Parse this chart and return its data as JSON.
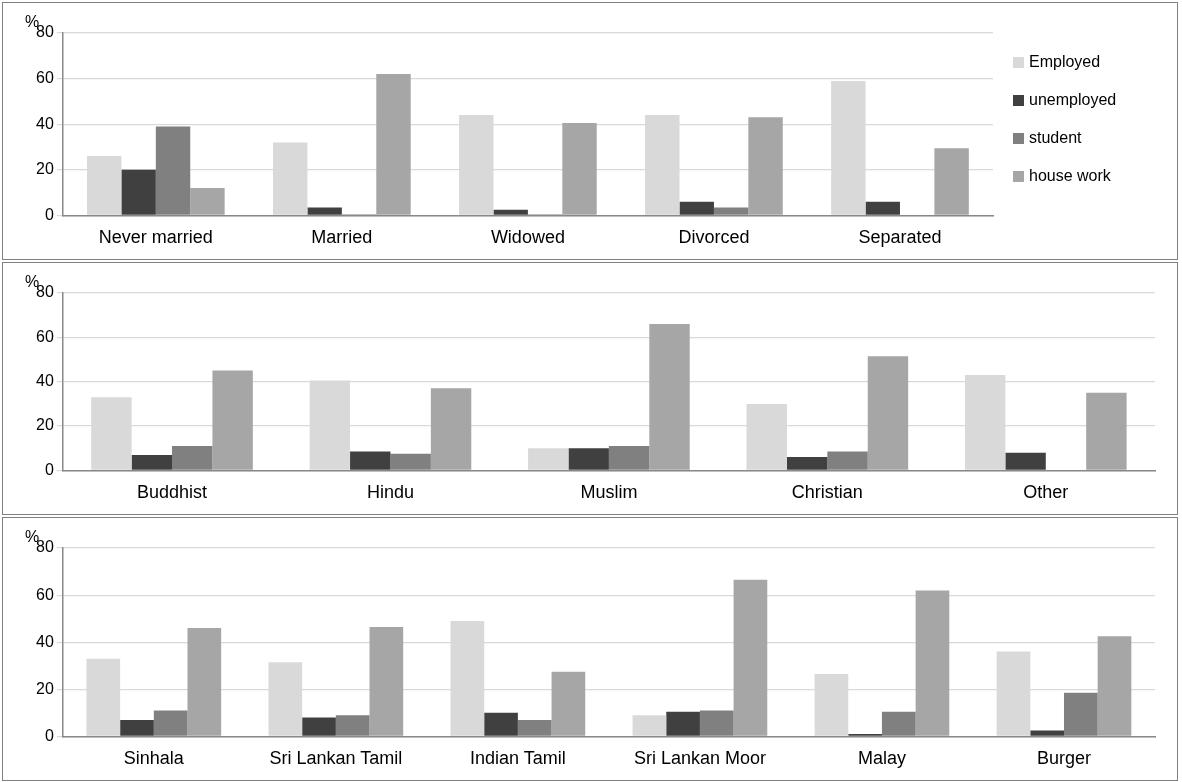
{
  "chart_data": [
    {
      "type": "bar",
      "ylabel": "%",
      "categories": [
        "Never married",
        "Married",
        "Widowed",
        "Divorced",
        "Separated"
      ],
      "ylim": [
        0,
        80
      ],
      "yticks": [
        0,
        20,
        40,
        60,
        80
      ],
      "grid": "y",
      "legend": "right",
      "series": [
        {
          "name": "Employed",
          "color": "#d9d9d9",
          "values": [
            26,
            32,
            44,
            44,
            59
          ]
        },
        {
          "name": "unemployed",
          "color": "#404040",
          "values": [
            20,
            3.5,
            2.5,
            6,
            6
          ]
        },
        {
          "name": "student",
          "color": "#808080",
          "values": [
            39,
            0.5,
            0.5,
            3.5,
            null
          ]
        },
        {
          "name": "house work",
          "color": "#a6a6a6",
          "values": [
            12,
            62,
            40.5,
            43,
            29.5
          ]
        }
      ]
    },
    {
      "type": "bar",
      "ylabel": "%",
      "categories": [
        "Buddhist",
        "Hindu",
        "Muslim",
        "Christian",
        "Other"
      ],
      "ylim": [
        0,
        80
      ],
      "yticks": [
        0,
        20,
        40,
        60,
        80
      ],
      "grid": "y",
      "series": [
        {
          "color": "#d9d9d9",
          "values": [
            33,
            40.5,
            10,
            30,
            43
          ]
        },
        {
          "color": "#404040",
          "values": [
            7,
            8.5,
            10,
            6,
            8
          ]
        },
        {
          "color": "#808080",
          "values": [
            11,
            7.5,
            11,
            8.5,
            null
          ]
        },
        {
          "color": "#a6a6a6",
          "values": [
            45,
            37,
            66,
            51.5,
            35
          ]
        }
      ]
    },
    {
      "type": "bar",
      "ylabel": "%",
      "categories": [
        "Sinhala",
        "Sri Lankan Tamil",
        "Indian Tamil",
        "Sri Lankan Moor",
        "Malay",
        "Burger"
      ],
      "ylim": [
        0,
        80
      ],
      "yticks": [
        0,
        20,
        40,
        60,
        80
      ],
      "grid": "y",
      "series": [
        {
          "color": "#d9d9d9",
          "values": [
            33,
            31.5,
            49,
            9,
            26.5,
            36
          ]
        },
        {
          "color": "#404040",
          "values": [
            7,
            8,
            10,
            10.5,
            1,
            2.5
          ]
        },
        {
          "color": "#808080",
          "values": [
            11,
            9,
            7,
            11,
            10.5,
            18.5
          ]
        },
        {
          "color": "#a6a6a6",
          "values": [
            46,
            46.5,
            27.5,
            66.5,
            62,
            42.5
          ]
        }
      ]
    }
  ]
}
